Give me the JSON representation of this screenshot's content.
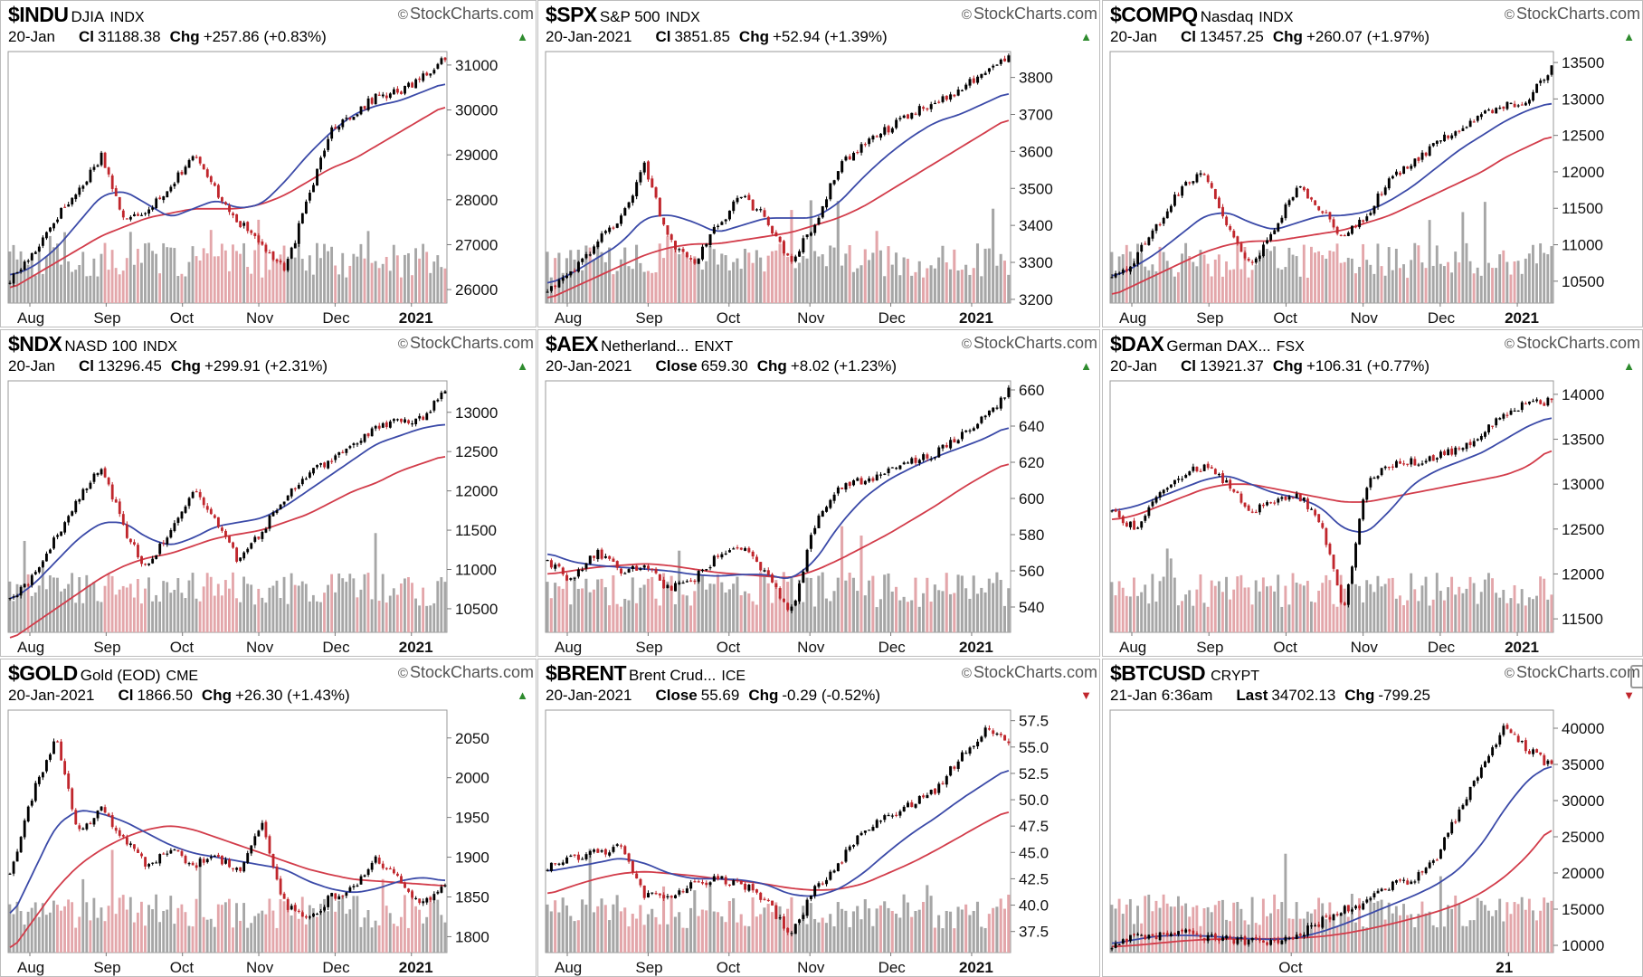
{
  "brand": "StockCharts.com",
  "colors": {
    "up": "#000000",
    "down": "#c0262c",
    "ma_short": "#3b4aa8",
    "ma_long": "#d23c4a",
    "vol_up": "#a6a6a6",
    "vol_down": "#e3a6aa",
    "border": "#bdbdbd"
  },
  "chart_data": [
    {
      "type": "line",
      "symbol": "$INDU",
      "name": "DJIA",
      "exchange": "INDX",
      "date": "20-Jan",
      "close_label": "Cl",
      "close": "31188.38",
      "chg_label": "Chg",
      "chg": "+257.86 (+0.83%)",
      "direction": "up",
      "x_labels": [
        "Aug",
        "Sep",
        "Oct",
        "Nov",
        "Dec",
        "2021"
      ],
      "y_ticks": [
        26000,
        27000,
        28000,
        29000,
        30000,
        31000
      ],
      "y_tick_labels": [
        "26000",
        "27000",
        "28000",
        "29000",
        "30000",
        "31000"
      ],
      "ylim": [
        25700,
        31300
      ],
      "anchors": [
        26200,
        26800,
        27600,
        28200,
        29000,
        27500,
        27800,
        28300,
        29000,
        28200,
        27500,
        27000,
        26400,
        28000,
        29600,
        29900,
        30300,
        30400,
        30700,
        31188
      ],
      "ma_short_anchors": [
        26300,
        26500,
        26900,
        27500,
        28100,
        28200,
        27900,
        27600,
        27800,
        28000,
        27800,
        27900,
        28400,
        29000,
        29500,
        29900,
        30100,
        30200,
        30400,
        30600
      ],
      "ma_long_anchors": [
        26000,
        26300,
        26600,
        26900,
        27200,
        27400,
        27600,
        27700,
        27800,
        27800,
        27800,
        27900,
        28100,
        28400,
        28700,
        28900,
        29200,
        29500,
        29800,
        30100
      ]
    },
    {
      "type": "line",
      "symbol": "$SPX",
      "name": "S&P 500",
      "exchange": "INDX",
      "date": "20-Jan-2021",
      "close_label": "Cl",
      "close": "3851.85",
      "chg_label": "Chg",
      "chg": "+52.94 (+1.39%)",
      "direction": "up",
      "x_labels": [
        "Aug",
        "Sep",
        "Oct",
        "Nov",
        "Dec",
        "2021"
      ],
      "y_ticks": [
        3200,
        3300,
        3400,
        3500,
        3600,
        3700,
        3800
      ],
      "y_tick_labels": [
        "3200",
        "3300",
        "3400",
        "3500",
        "3600",
        "3700",
        "3800"
      ],
      "ylim": [
        3190,
        3870
      ],
      "anchors": [
        3230,
        3280,
        3350,
        3420,
        3560,
        3360,
        3290,
        3400,
        3480,
        3420,
        3300,
        3400,
        3560,
        3620,
        3660,
        3700,
        3740,
        3760,
        3820,
        3852
      ],
      "ma_short_anchors": [
        3240,
        3270,
        3310,
        3350,
        3420,
        3430,
        3410,
        3380,
        3400,
        3420,
        3420,
        3420,
        3460,
        3530,
        3590,
        3640,
        3680,
        3700,
        3730,
        3760
      ],
      "ma_long_anchors": [
        3200,
        3230,
        3260,
        3290,
        3320,
        3340,
        3350,
        3350,
        3360,
        3370,
        3380,
        3400,
        3420,
        3450,
        3490,
        3530,
        3570,
        3610,
        3650,
        3690
      ]
    },
    {
      "type": "line",
      "symbol": "$COMPQ",
      "name": "Nasdaq",
      "exchange": "INDX",
      "date": "20-Jan",
      "close_label": "Cl",
      "close": "13457.25",
      "chg_label": "Chg",
      "chg": "+260.07 (+1.97%)",
      "direction": "up",
      "x_labels": [
        "Aug",
        "Sep",
        "Oct",
        "Nov",
        "Dec",
        "2021"
      ],
      "y_ticks": [
        10500,
        11000,
        11500,
        12000,
        12500,
        13000,
        13500
      ],
      "y_tick_labels": [
        "10500",
        "11000",
        "11500",
        "12000",
        "12500",
        "13000",
        "13500"
      ],
      "ylim": [
        10200,
        13650
      ],
      "anchors": [
        10500,
        10800,
        11300,
        11800,
        12000,
        11200,
        10700,
        11200,
        11800,
        11500,
        11100,
        11400,
        11900,
        12100,
        12400,
        12600,
        12800,
        12900,
        13000,
        13457
      ],
      "ma_short_anchors": [
        10550,
        10700,
        10900,
        11150,
        11400,
        11450,
        11300,
        11200,
        11300,
        11400,
        11400,
        11450,
        11600,
        11800,
        12050,
        12300,
        12500,
        12700,
        12850,
        12950
      ],
      "ma_long_anchors": [
        10300,
        10450,
        10600,
        10750,
        10900,
        11000,
        11050,
        11050,
        11100,
        11150,
        11200,
        11300,
        11400,
        11550,
        11700,
        11850,
        12000,
        12200,
        12350,
        12500
      ]
    },
    {
      "type": "line",
      "symbol": "$NDX",
      "name": "NASD 100",
      "exchange": "INDX",
      "date": "20-Jan",
      "close_label": "Cl",
      "close": "13296.45",
      "chg_label": "Chg",
      "chg": "+299.91 (+2.31%)",
      "direction": "up",
      "x_labels": [
        "Aug",
        "Sep",
        "Oct",
        "Nov",
        "Dec",
        "2021"
      ],
      "y_ticks": [
        10500,
        11000,
        11500,
        12000,
        12500,
        13000
      ],
      "y_tick_labels": [
        "10500",
        "11000",
        "11500",
        "12000",
        "12500",
        "13000"
      ],
      "ylim": [
        10200,
        13400
      ],
      "anchors": [
        10600,
        10900,
        11400,
        11900,
        12300,
        11500,
        11000,
        11500,
        12000,
        11600,
        11100,
        11500,
        11900,
        12200,
        12400,
        12600,
        12800,
        12900,
        12900,
        13296
      ],
      "ma_short_anchors": [
        10600,
        10800,
        11100,
        11400,
        11600,
        11600,
        11400,
        11300,
        11400,
        11550,
        11600,
        11650,
        11800,
        12000,
        12200,
        12400,
        12600,
        12700,
        12800,
        12850
      ],
      "ma_long_anchors": [
        10100,
        10300,
        10500,
        10700,
        10900,
        11050,
        11150,
        11200,
        11300,
        11400,
        11450,
        11500,
        11600,
        11700,
        11850,
        12000,
        12100,
        12250,
        12350,
        12450
      ]
    },
    {
      "type": "line",
      "symbol": "$AEX",
      "name": "Netherland...",
      "exchange": "ENXT",
      "date": "20-Jan-2021",
      "close_label": "Close",
      "close": "659.30",
      "chg_label": "Chg",
      "chg": "+8.02 (+1.23%)",
      "direction": "up",
      "x_labels": [
        "Aug",
        "Sep",
        "Oct",
        "Nov",
        "Dec",
        "2021"
      ],
      "y_ticks": [
        540,
        560,
        580,
        600,
        620,
        640,
        660
      ],
      "y_tick_labels": [
        "540",
        "560",
        "580",
        "600",
        "620",
        "640",
        "660"
      ],
      "ylim": [
        526,
        665
      ],
      "anchors": [
        565,
        555,
        570,
        560,
        563,
        550,
        555,
        568,
        572,
        560,
        535,
        585,
        605,
        610,
        615,
        620,
        625,
        635,
        645,
        659
      ],
      "ma_short_anchors": [
        570,
        565,
        563,
        562,
        561,
        560,
        558,
        557,
        558,
        558,
        555,
        565,
        585,
        600,
        610,
        617,
        623,
        628,
        633,
        640
      ],
      "ma_long_anchors": [
        558,
        560,
        562,
        563,
        564,
        563,
        561,
        559,
        558,
        557,
        556,
        560,
        566,
        573,
        580,
        588,
        596,
        605,
        613,
        620
      ]
    },
    {
      "type": "line",
      "symbol": "$DAX",
      "name": "German DAX...",
      "exchange": "FSX",
      "date": "20-Jan",
      "close_label": "Cl",
      "close": "13921.37",
      "chg_label": "Chg",
      "chg": "+106.31 (+0.77%)",
      "direction": "up",
      "x_labels": [
        "Aug",
        "Sep",
        "Oct",
        "Nov",
        "Dec",
        "2021"
      ],
      "y_ticks": [
        11500,
        12000,
        12500,
        13000,
        13500,
        14000
      ],
      "y_tick_labels": [
        "11500",
        "12000",
        "12500",
        "13000",
        "13500",
        "14000"
      ],
      "ylim": [
        11350,
        14150
      ],
      "anchors": [
        12700,
        12500,
        12900,
        13100,
        13200,
        13000,
        12700,
        12800,
        12900,
        12600,
        11600,
        13000,
        13200,
        13250,
        13300,
        13400,
        13550,
        13800,
        13900,
        13921
      ],
      "ma_short_anchors": [
        12700,
        12750,
        12850,
        12950,
        13050,
        13100,
        13000,
        12900,
        12850,
        12750,
        12500,
        12450,
        12700,
        13000,
        13150,
        13250,
        13350,
        13500,
        13650,
        13750
      ],
      "ma_long_anchors": [
        12600,
        12650,
        12750,
        12850,
        12950,
        13000,
        13000,
        12950,
        12900,
        12850,
        12800,
        12800,
        12850,
        12900,
        12950,
        13000,
        13050,
        13100,
        13200,
        13400
      ]
    },
    {
      "type": "line",
      "symbol": "$GOLD",
      "name": "Gold (EOD)",
      "exchange": "CME",
      "date": "20-Jan-2021",
      "close_label": "Cl",
      "close": "1866.50",
      "chg_label": "Chg",
      "chg": "+26.30 (+1.43%)",
      "direction": "up",
      "x_labels": [
        "Aug",
        "Sep",
        "Oct",
        "Nov",
        "Dec",
        "2021"
      ],
      "y_ticks": [
        1800,
        1850,
        1900,
        1950,
        2000,
        2050
      ],
      "y_tick_labels": [
        "1800",
        "1850",
        "1900",
        "1950",
        "2000",
        "2050"
      ],
      "ylim": [
        1780,
        2085
      ],
      "anchors": [
        1880,
        1980,
        2050,
        1930,
        1960,
        1920,
        1890,
        1910,
        1890,
        1900,
        1880,
        1940,
        1840,
        1820,
        1850,
        1860,
        1900,
        1870,
        1840,
        1866
      ],
      "ma_short_anchors": [
        1820,
        1880,
        1940,
        1960,
        1955,
        1945,
        1930,
        1915,
        1905,
        1900,
        1895,
        1890,
        1885,
        1870,
        1860,
        1855,
        1860,
        1870,
        1875,
        1870
      ],
      "ma_long_anchors": [
        1780,
        1820,
        1860,
        1890,
        1910,
        1925,
        1935,
        1940,
        1935,
        1925,
        1915,
        1905,
        1895,
        1885,
        1878,
        1872,
        1870,
        1868,
        1866,
        1864
      ]
    },
    {
      "type": "line",
      "symbol": "$BRENT",
      "name": "Brent Crud...",
      "exchange": "ICE",
      "date": "20-Jan-2021",
      "close_label": "Close",
      "close": "55.69",
      "chg_label": "Chg",
      "chg": "-0.29 (-0.52%)",
      "direction": "down",
      "x_labels": [
        "Aug",
        "Sep",
        "Oct",
        "Nov",
        "Dec",
        "2021"
      ],
      "y_ticks": [
        37.5,
        40,
        42.5,
        45,
        47.5,
        50,
        52.5,
        55,
        57.5
      ],
      "y_tick_labels": [
        "37.5",
        "40.0",
        "42.5",
        "45.0",
        "47.5",
        "50.0",
        "52.5",
        "55.0",
        "57.5"
      ],
      "ylim": [
        35.5,
        58.5
      ],
      "anchors": [
        43.5,
        44.5,
        45,
        45.5,
        41,
        40.5,
        42,
        42.5,
        42,
        40.5,
        37,
        41.5,
        44,
        47,
        48.5,
        49.5,
        51,
        54,
        56.5,
        55.7
      ],
      "ma_short_anchors": [
        43.2,
        43.6,
        44,
        44.5,
        44,
        43,
        42.5,
        42.5,
        42.4,
        42,
        41,
        40.8,
        41.5,
        43,
        45,
        46.8,
        48.3,
        50,
        51.5,
        53
      ],
      "ma_long_anchors": [
        41,
        41.8,
        42.5,
        43,
        43.2,
        43,
        42.8,
        42.5,
        42.3,
        42,
        41.6,
        41.4,
        41.5,
        42,
        43,
        44,
        45.2,
        46.5,
        47.8,
        49
      ]
    },
    {
      "type": "line",
      "symbol": "$BTCUSD",
      "name": "",
      "exchange": "CRYPT",
      "date": "21-Jan 6:36am",
      "close_label": "Last",
      "close": "34702.13",
      "chg_label": "Chg",
      "chg": "-799.25",
      "direction": "down",
      "x_labels": [
        "Oct",
        "21"
      ],
      "y_ticks": [
        10000,
        15000,
        20000,
        25000,
        30000,
        35000,
        40000
      ],
      "y_tick_labels": [
        "10000",
        "15000",
        "20000",
        "25000",
        "30000",
        "35000",
        "40000"
      ],
      "ylim": [
        9000,
        42500
      ],
      "anchors": [
        10000,
        11500,
        11300,
        11800,
        11000,
        10800,
        10500,
        10700,
        11500,
        13200,
        15000,
        16000,
        18200,
        19000,
        22000,
        28500,
        35000,
        40500,
        37000,
        34702
      ],
      "ma_short_anchors": [
        10200,
        10800,
        11300,
        11400,
        11300,
        11100,
        10900,
        10800,
        11000,
        11800,
        12900,
        14200,
        15500,
        16800,
        18300,
        20500,
        24000,
        29000,
        33000,
        35000
      ],
      "ma_long_anchors": [
        9800,
        10000,
        10300,
        10600,
        10800,
        10900,
        10900,
        10900,
        11000,
        11200,
        11600,
        12200,
        12900,
        13700,
        14600,
        15700,
        17300,
        19500,
        22500,
        26500
      ]
    }
  ]
}
